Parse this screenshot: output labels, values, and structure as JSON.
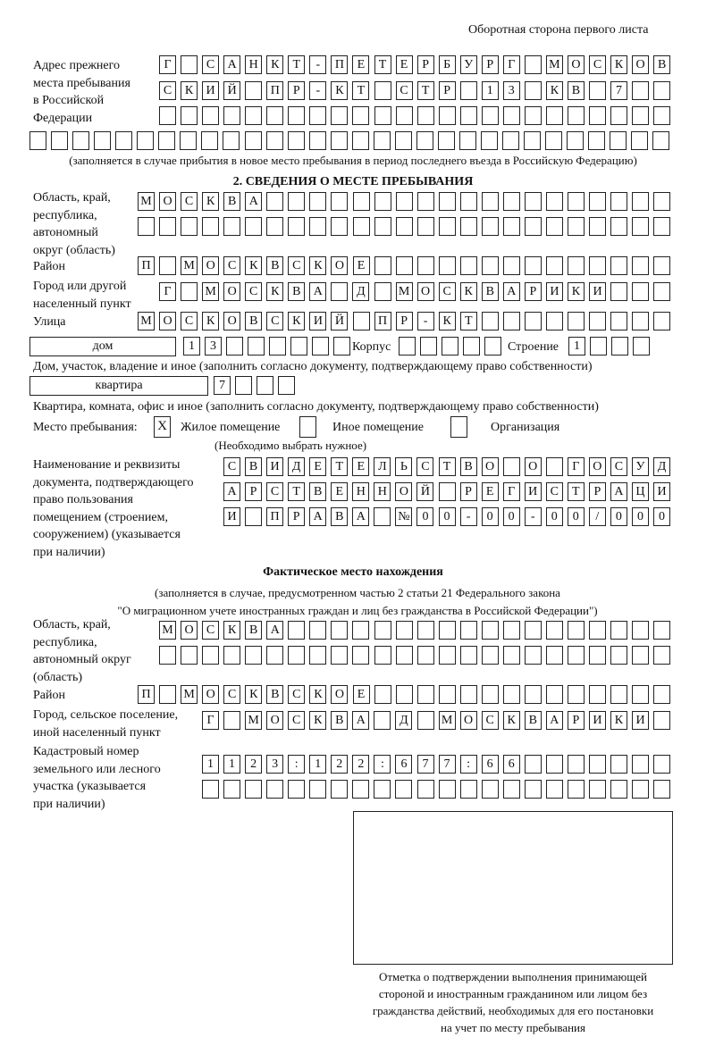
{
  "header": {
    "title": "Оборотная сторона первого листа"
  },
  "previous_address": {
    "label": [
      "Адрес прежнего",
      "места пребывания",
      "в Российской",
      "Федерации"
    ],
    "rows": [
      "Г САНКТ-ПЕТЕРБУРГ МОСКОВ",
      "СКИЙ ПР-КТ СТР 13 КВ 7",
      "",
      ""
    ],
    "note": "(заполняется в случае прибытия в новое место пребывания в период последнего въезда в Российскую Федерацию)"
  },
  "section2": {
    "title": "2. СВЕДЕНИЯ О МЕСТЕ ПРЕБЫВАНИЯ",
    "region_label": [
      "Область, край,",
      "республика,",
      "автономный",
      "округ (область)"
    ],
    "region_rows": [
      "МОСКВА",
      ""
    ],
    "district_label": "Район",
    "district": "П МОСКВСКОЕ",
    "city_label": [
      "Город или другой",
      "населенный пункт"
    ],
    "city": "Г МОСКВА Д МОСКВАРИКИ",
    "street_label": "Улица",
    "street": "МОСКОВСКИЙ ПР-КТ",
    "house_type": "дом",
    "house": "13",
    "korpus_label": "Корпус",
    "korpus": "",
    "building_label": "Строение",
    "building": "1",
    "house_note": "Дом, участок, владение и иное (заполнить согласно документу, подтверждающему право собственности)",
    "apartment_type": "квартира",
    "apartment": "7",
    "apartment_note": "Квартира, комната, офис и иное (заполнить согласно документу, подтверждающему право собственности)",
    "place_label": "Место пребывания:",
    "place_options": [
      {
        "label": "Жилое помещение",
        "mark": "X"
      },
      {
        "label": "Иное помещение",
        "mark": ""
      },
      {
        "label": "Организация",
        "mark": ""
      }
    ],
    "place_note": "(Необходимо выбрать нужное)",
    "document_label": [
      "Наименование и реквизиты",
      "документа, подтверждающего",
      "право пользования",
      "помещением (строением,",
      "сооружением) (указывается",
      "при наличии)"
    ],
    "document_rows": [
      "СВИДЕТЕЛЬСТВО О ГОСУД",
      "АРСТВЕННОЙ РЕГИСТРАЦИ",
      "И ПРАВА №00-00-00/000"
    ]
  },
  "actual": {
    "title": "Фактическое место нахождения",
    "note": [
      "(заполняется в случае, предусмотренном частью 2 статьи 21 Федерального закона",
      "\"О миграционном учете иностранных граждан и лиц без гражданства в Российской Федерации\")"
    ],
    "region_label": [
      "Область, край,",
      "республика,",
      "автономный округ",
      "(область)"
    ],
    "region_rows": [
      "МОСКВА",
      ""
    ],
    "district_label": "Район",
    "district": "П МОСКВСКОЕ",
    "city_label": [
      "Город, сельское поселение,",
      "иной населенный пункт"
    ],
    "city": "Г МОСКВА Д МОСКВАРИКИ",
    "cadastral_label": [
      "Кадастровый номер",
      "земельного или лесного",
      "участка (указывается",
      "при наличии)"
    ],
    "cadastral_rows": [
      "1123:122:677:66",
      ""
    ]
  },
  "stamp": {
    "caption": [
      "Отметка о подтверждении выполнения принимающей",
      "стороной и иностранным гражданином или лицом без",
      "гражданства действий, необходимых для его постановки",
      "на учет по месту пребывания"
    ]
  }
}
